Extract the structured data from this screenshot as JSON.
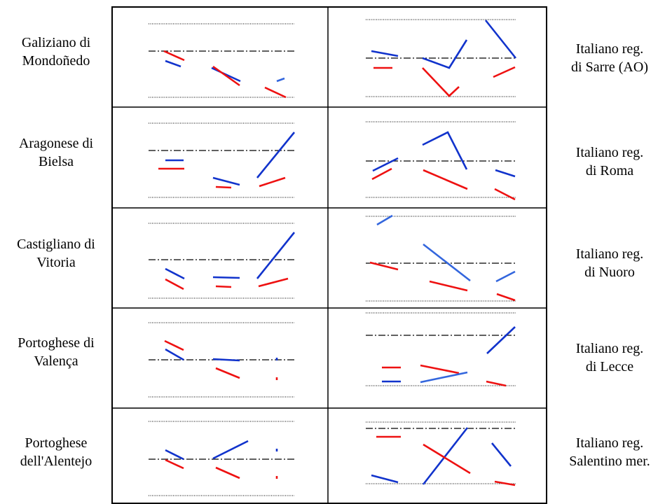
{
  "colors": {
    "red": "#ee1111",
    "blue": "#1133cc",
    "light_blue": "#3366dd",
    "frame": "#000000",
    "ref_line": "#000000"
  },
  "rows": [
    {
      "left_label": [
        "Galiziano di",
        "Mondoñedo"
      ],
      "right_label": [
        "Italiano reg.",
        "di Sarre (AO)"
      ],
      "left_segments": [
        {
          "c": "red",
          "p": [
            [
              234,
              73
            ],
            [
              263,
              86
            ]
          ]
        },
        {
          "c": "blue",
          "p": [
            [
              236,
              87
            ],
            [
              258,
              95
            ]
          ]
        },
        {
          "c": "blue",
          "p": [
            [
              302,
              97
            ],
            [
              343,
              116
            ]
          ]
        },
        {
          "c": "red",
          "p": [
            [
              304,
              95
            ],
            [
              342,
              122
            ]
          ]
        },
        {
          "c": "red",
          "p": [
            [
              378,
              125
            ],
            [
              408,
              139
            ]
          ]
        },
        {
          "c": "light_blue",
          "p": [
            [
              395,
              116
            ],
            [
              406,
              112
            ]
          ]
        }
      ],
      "right_segments": [
        {
          "c": "blue",
          "p": [
            [
              530,
              73
            ],
            [
              568,
              80
            ]
          ]
        },
        {
          "c": "red",
          "p": [
            [
              533,
              97
            ],
            [
              560,
              97
            ]
          ]
        },
        {
          "c": "red",
          "p": [
            [
              603,
              97
            ],
            [
              641,
              137
            ],
            [
              655,
              124
            ]
          ]
        },
        {
          "c": "blue",
          "p": [
            [
              603,
              83
            ],
            [
              641,
              97
            ],
            [
              666,
              57
            ]
          ]
        },
        {
          "c": "blue",
          "p": [
            [
              693,
              29
            ],
            [
              736,
              83
            ]
          ]
        },
        {
          "c": "red",
          "p": [
            [
              704,
              110
            ],
            [
              735,
              96
            ]
          ]
        }
      ]
    },
    {
      "left_label": [
        "Aragonese di",
        "Bielsa"
      ],
      "right_label": [
        "Italiano reg.",
        "di Roma"
      ],
      "left_segments": [
        {
          "c": "blue",
          "p": [
            [
              236,
              229
            ],
            [
              262,
              229
            ]
          ]
        },
        {
          "c": "red",
          "p": [
            [
              226,
              241
            ],
            [
              263,
              241
            ]
          ]
        },
        {
          "c": "blue",
          "p": [
            [
              304,
              254
            ],
            [
              342,
              264
            ]
          ]
        },
        {
          "c": "red",
          "p": [
            [
              308,
              267
            ],
            [
              330,
              268
            ]
          ]
        },
        {
          "c": "blue",
          "p": [
            [
              367,
              254
            ],
            [
              420,
              189
            ]
          ]
        },
        {
          "c": "red",
          "p": [
            [
              370,
              266
            ],
            [
              407,
              254
            ]
          ]
        }
      ],
      "right_segments": [
        {
          "c": "blue",
          "p": [
            [
              532,
              244
            ],
            [
              568,
              226
            ]
          ]
        },
        {
          "c": "red",
          "p": [
            [
              531,
              256
            ],
            [
              559,
              241
            ]
          ]
        },
        {
          "c": "blue",
          "p": [
            [
              603,
              207
            ],
            [
              639,
              189
            ],
            [
              666,
              242
            ]
          ]
        },
        {
          "c": "red",
          "p": [
            [
              604,
              243
            ],
            [
              667,
              270
            ]
          ]
        },
        {
          "c": "blue",
          "p": [
            [
              707,
              243
            ],
            [
              735,
              252
            ]
          ]
        },
        {
          "c": "red",
          "p": [
            [
              706,
              270
            ],
            [
              735,
              285
            ]
          ]
        }
      ]
    },
    {
      "left_label": [
        "Castigliano di",
        "Vitoria"
      ],
      "right_label": [
        "Italiano reg.",
        "di Nuoro"
      ],
      "left_segments": [
        {
          "c": "blue",
          "p": [
            [
              236,
              384
            ],
            [
              263,
              398
            ]
          ]
        },
        {
          "c": "red",
          "p": [
            [
              236,
              399
            ],
            [
              262,
              413
            ]
          ]
        },
        {
          "c": "blue",
          "p": [
            [
              304,
              396
            ],
            [
              342,
              397
            ]
          ]
        },
        {
          "c": "red",
          "p": [
            [
              308,
              409
            ],
            [
              330,
              410
            ]
          ]
        },
        {
          "c": "blue",
          "p": [
            [
              367,
              398
            ],
            [
              420,
              332
            ]
          ]
        },
        {
          "c": "red",
          "p": [
            [
              369,
              409
            ],
            [
              411,
              398
            ]
          ]
        }
      ],
      "right_segments": [
        {
          "c": "light_blue",
          "p": [
            [
              538,
              321
            ],
            [
              560,
              308
            ]
          ]
        },
        {
          "c": "red",
          "p": [
            [
              528,
              375
            ],
            [
              568,
              385
            ]
          ]
        },
        {
          "c": "light_blue",
          "p": [
            [
              604,
              349
            ],
            [
              671,
              401
            ]
          ]
        },
        {
          "c": "red",
          "p": [
            [
              613,
              402
            ],
            [
              667,
              415
            ]
          ]
        },
        {
          "c": "light_blue",
          "p": [
            [
              708,
              402
            ],
            [
              735,
              388
            ]
          ]
        },
        {
          "c": "red",
          "p": [
            [
              709,
              420
            ],
            [
              735,
              429
            ]
          ]
        }
      ]
    },
    {
      "left_label": [
        "Portoghese di",
        "Valença"
      ],
      "right_label": [
        "Italiano reg.",
        "di Lecce"
      ],
      "left_segments": [
        {
          "c": "red",
          "p": [
            [
              235,
              487
            ],
            [
              262,
              500
            ]
          ]
        },
        {
          "c": "blue",
          "p": [
            [
              236,
              499
            ],
            [
              262,
              514
            ]
          ]
        },
        {
          "c": "blue",
          "p": [
            [
              304,
              513
            ],
            [
              342,
              515
            ]
          ]
        },
        {
          "c": "red",
          "p": [
            [
              308,
              526
            ],
            [
              342,
              540
            ]
          ]
        },
        {
          "c": "blue",
          "p": [
            [
              395,
              511
            ],
            [
              395,
              515
            ]
          ]
        },
        {
          "c": "red",
          "p": [
            [
              395,
              539
            ],
            [
              395,
              543
            ]
          ]
        }
      ],
      "right_segments": [
        {
          "c": "red",
          "p": [
            [
              545,
              525
            ],
            [
              572,
              525
            ]
          ]
        },
        {
          "c": "blue",
          "p": [
            [
              545,
              545
            ],
            [
              572,
              545
            ]
          ]
        },
        {
          "c": "red",
          "p": [
            [
              600,
              522
            ],
            [
              655,
              533
            ]
          ]
        },
        {
          "c": "light_blue",
          "p": [
            [
              600,
              546
            ],
            [
              667,
              532
            ]
          ]
        },
        {
          "c": "blue",
          "p": [
            [
              695,
              505
            ],
            [
              735,
              467
            ]
          ]
        },
        {
          "c": "red",
          "p": [
            [
              694,
              545
            ],
            [
              722,
              551
            ]
          ]
        }
      ]
    },
    {
      "left_label": [
        "Portoghese",
        "dell'Alentejo"
      ],
      "right_label": [
        "Italiano reg.",
        "Salentino mer."
      ],
      "left_segments": [
        {
          "c": "blue",
          "p": [
            [
              236,
              643
            ],
            [
              262,
              656
            ]
          ]
        },
        {
          "c": "red",
          "p": [
            [
              236,
              657
            ],
            [
              262,
              669
            ]
          ]
        },
        {
          "c": "blue",
          "p": [
            [
              304,
              655
            ],
            [
              354,
              630
            ]
          ]
        },
        {
          "c": "red",
          "p": [
            [
              308,
              668
            ],
            [
              342,
              683
            ]
          ]
        },
        {
          "c": "blue",
          "p": [
            [
              395,
              641
            ],
            [
              395,
              645
            ]
          ]
        },
        {
          "c": "red",
          "p": [
            [
              395,
              680
            ],
            [
              395,
              684
            ]
          ]
        }
      ],
      "right_segments": [
        {
          "c": "red",
          "p": [
            [
              537,
              624
            ],
            [
              572,
              624
            ]
          ]
        },
        {
          "c": "blue",
          "p": [
            [
              530,
              679
            ],
            [
              568,
              689
            ]
          ]
        },
        {
          "c": "blue",
          "p": [
            [
              604,
              692
            ],
            [
              667,
              611
            ]
          ]
        },
        {
          "c": "red",
          "p": [
            [
              604,
              635
            ],
            [
              671,
              676
            ]
          ]
        },
        {
          "c": "blue",
          "p": [
            [
              702,
              633
            ],
            [
              729,
              666
            ]
          ]
        },
        {
          "c": "red",
          "p": [
            [
              706,
              688
            ],
            [
              735,
              693
            ]
          ]
        }
      ]
    }
  ]
}
